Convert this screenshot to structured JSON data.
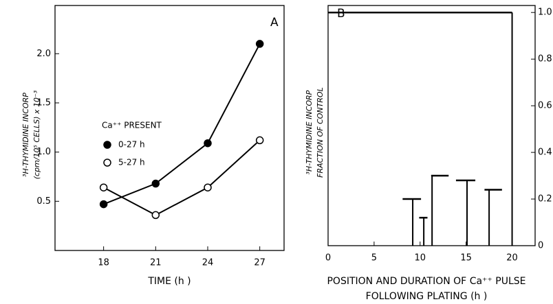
{
  "chart_data": [
    {
      "type": "line",
      "panel_label": "A",
      "legend_title": "Ca⁺⁺ PRESENT",
      "xlabel": [
        "TIME (h )"
      ],
      "ylabel": [
        "³H-THYMIDINE INCORP",
        "(cpm/10⁵ CELLS) x 10⁻³"
      ],
      "x": [
        18,
        21,
        24,
        27
      ],
      "series": [
        {
          "name": "0-27 h",
          "color": "#000000",
          "marker_fill": "#000000",
          "values": [
            0.47,
            0.68,
            1.09,
            2.1
          ]
        },
        {
          "name": "5-27 h",
          "color": "#000000",
          "marker_fill": "#ffffff",
          "values": [
            0.64,
            0.36,
            0.64,
            1.12
          ]
        }
      ],
      "xlim": [
        15.2,
        28.4
      ],
      "ylim": [
        0,
        2.49
      ],
      "xticks": [
        18,
        21,
        24,
        27
      ],
      "yticks": [
        0.5,
        {
          "value": 1,
          "label": "1.0"
        },
        1.5,
        {
          "value": 2,
          "label": "2.0"
        }
      ]
    },
    {
      "type": "pulse",
      "panel_label": "B",
      "xlabel": [
        "POSITION AND DURATION OF Ca⁺⁺ PULSE",
        "FOLLOWING PLATING (h )"
      ],
      "ylabel": [
        "³H-THYMIDINE INCORP",
        "FRACTION OF CONTROL"
      ],
      "x": [
        20,
        9.2,
        10.4,
        11.3,
        15.1,
        17.5
      ],
      "x_start": [
        0,
        8.1,
        9.9,
        11.2,
        13.9,
        17
      ],
      "x_end": [
        20,
        10.1,
        10.8,
        13.1,
        16,
        18.9
      ],
      "values": [
        1,
        0.2,
        0.12,
        0.3,
        0.28,
        0.24
      ],
      "color": "#000000",
      "xlim": [
        0,
        22.5
      ],
      "ylim": [
        0,
        1.03
      ],
      "xticks": [
        0,
        5,
        10,
        15,
        20
      ],
      "yticks": [
        0,
        0.2,
        0.4,
        0.6,
        0.8,
        {
          "value": 1,
          "label": "1.0"
        }
      ]
    }
  ]
}
